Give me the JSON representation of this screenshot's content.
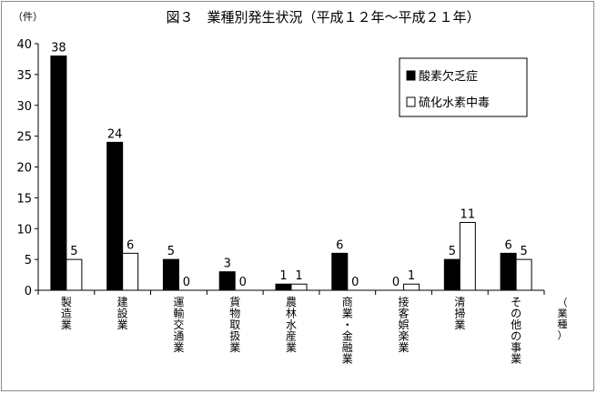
{
  "chart_data": {
    "type": "bar",
    "title": "図３　業種別発生状況（平成１２年～平成２１年）",
    "y_unit": "（件）",
    "x_unit": "（業種）",
    "ylim": [
      0,
      40
    ],
    "yticks": [
      0,
      5,
      10,
      15,
      20,
      25,
      30,
      35,
      40
    ],
    "grid": false,
    "legend_position": "top-right",
    "categories": [
      "製造業",
      "建設業",
      "運輸交通業",
      "貨物取扱業",
      "農林水産業",
      "商業・金融業",
      "接客娯楽業",
      "清掃業",
      "その他の事業"
    ],
    "series": [
      {
        "name": "酸素欠乏症",
        "color": "#000000",
        "values": [
          38,
          24,
          5,
          3,
          1,
          6,
          0,
          5,
          6
        ]
      },
      {
        "name": "硫化水素中毒",
        "color": "#ffffff",
        "values": [
          5,
          6,
          0,
          0,
          1,
          0,
          1,
          11,
          5
        ]
      }
    ]
  }
}
